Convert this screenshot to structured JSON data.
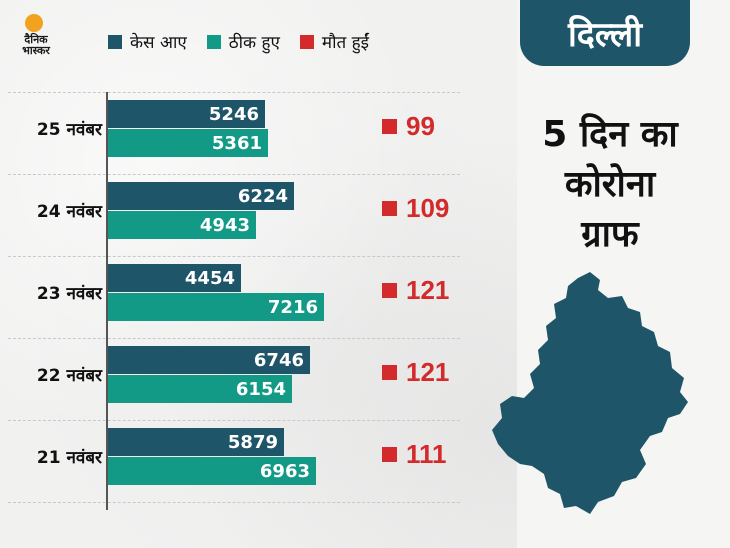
{
  "brand": {
    "logo_text": "दैनिक भास्कर"
  },
  "legend": [
    {
      "label": "केस आए",
      "color": "#1f5568"
    },
    {
      "label": "ठीक हुए",
      "color": "#129a86"
    },
    {
      "label": "मौत हुईं",
      "color": "#d32a2c"
    }
  ],
  "panel": {
    "tab": "दिल्ली",
    "title_lines": [
      "5 दिन का",
      "कोरोना",
      "ग्राफ"
    ],
    "map_icon": "delhi-map-icon"
  },
  "colors": {
    "cases": "#1f5568",
    "recovered": "#129a86",
    "deaths": "#d32a2c"
  },
  "chart_data": {
    "type": "bar",
    "categories": [
      "25 नवंबर",
      "24 नवंबर",
      "23 नवंबर",
      "22 नवंबर",
      "21 नवंबर"
    ],
    "series": [
      {
        "name": "केस आए",
        "values": [
          5246,
          6224,
          4454,
          6746,
          5879
        ]
      },
      {
        "name": "ठीक हुए",
        "values": [
          5361,
          4943,
          7216,
          6154,
          6963
        ]
      },
      {
        "name": "मौत हुईं",
        "values": [
          99,
          109,
          121,
          121,
          111
        ]
      }
    ],
    "title": "",
    "xlabel": "",
    "ylabel": ""
  }
}
